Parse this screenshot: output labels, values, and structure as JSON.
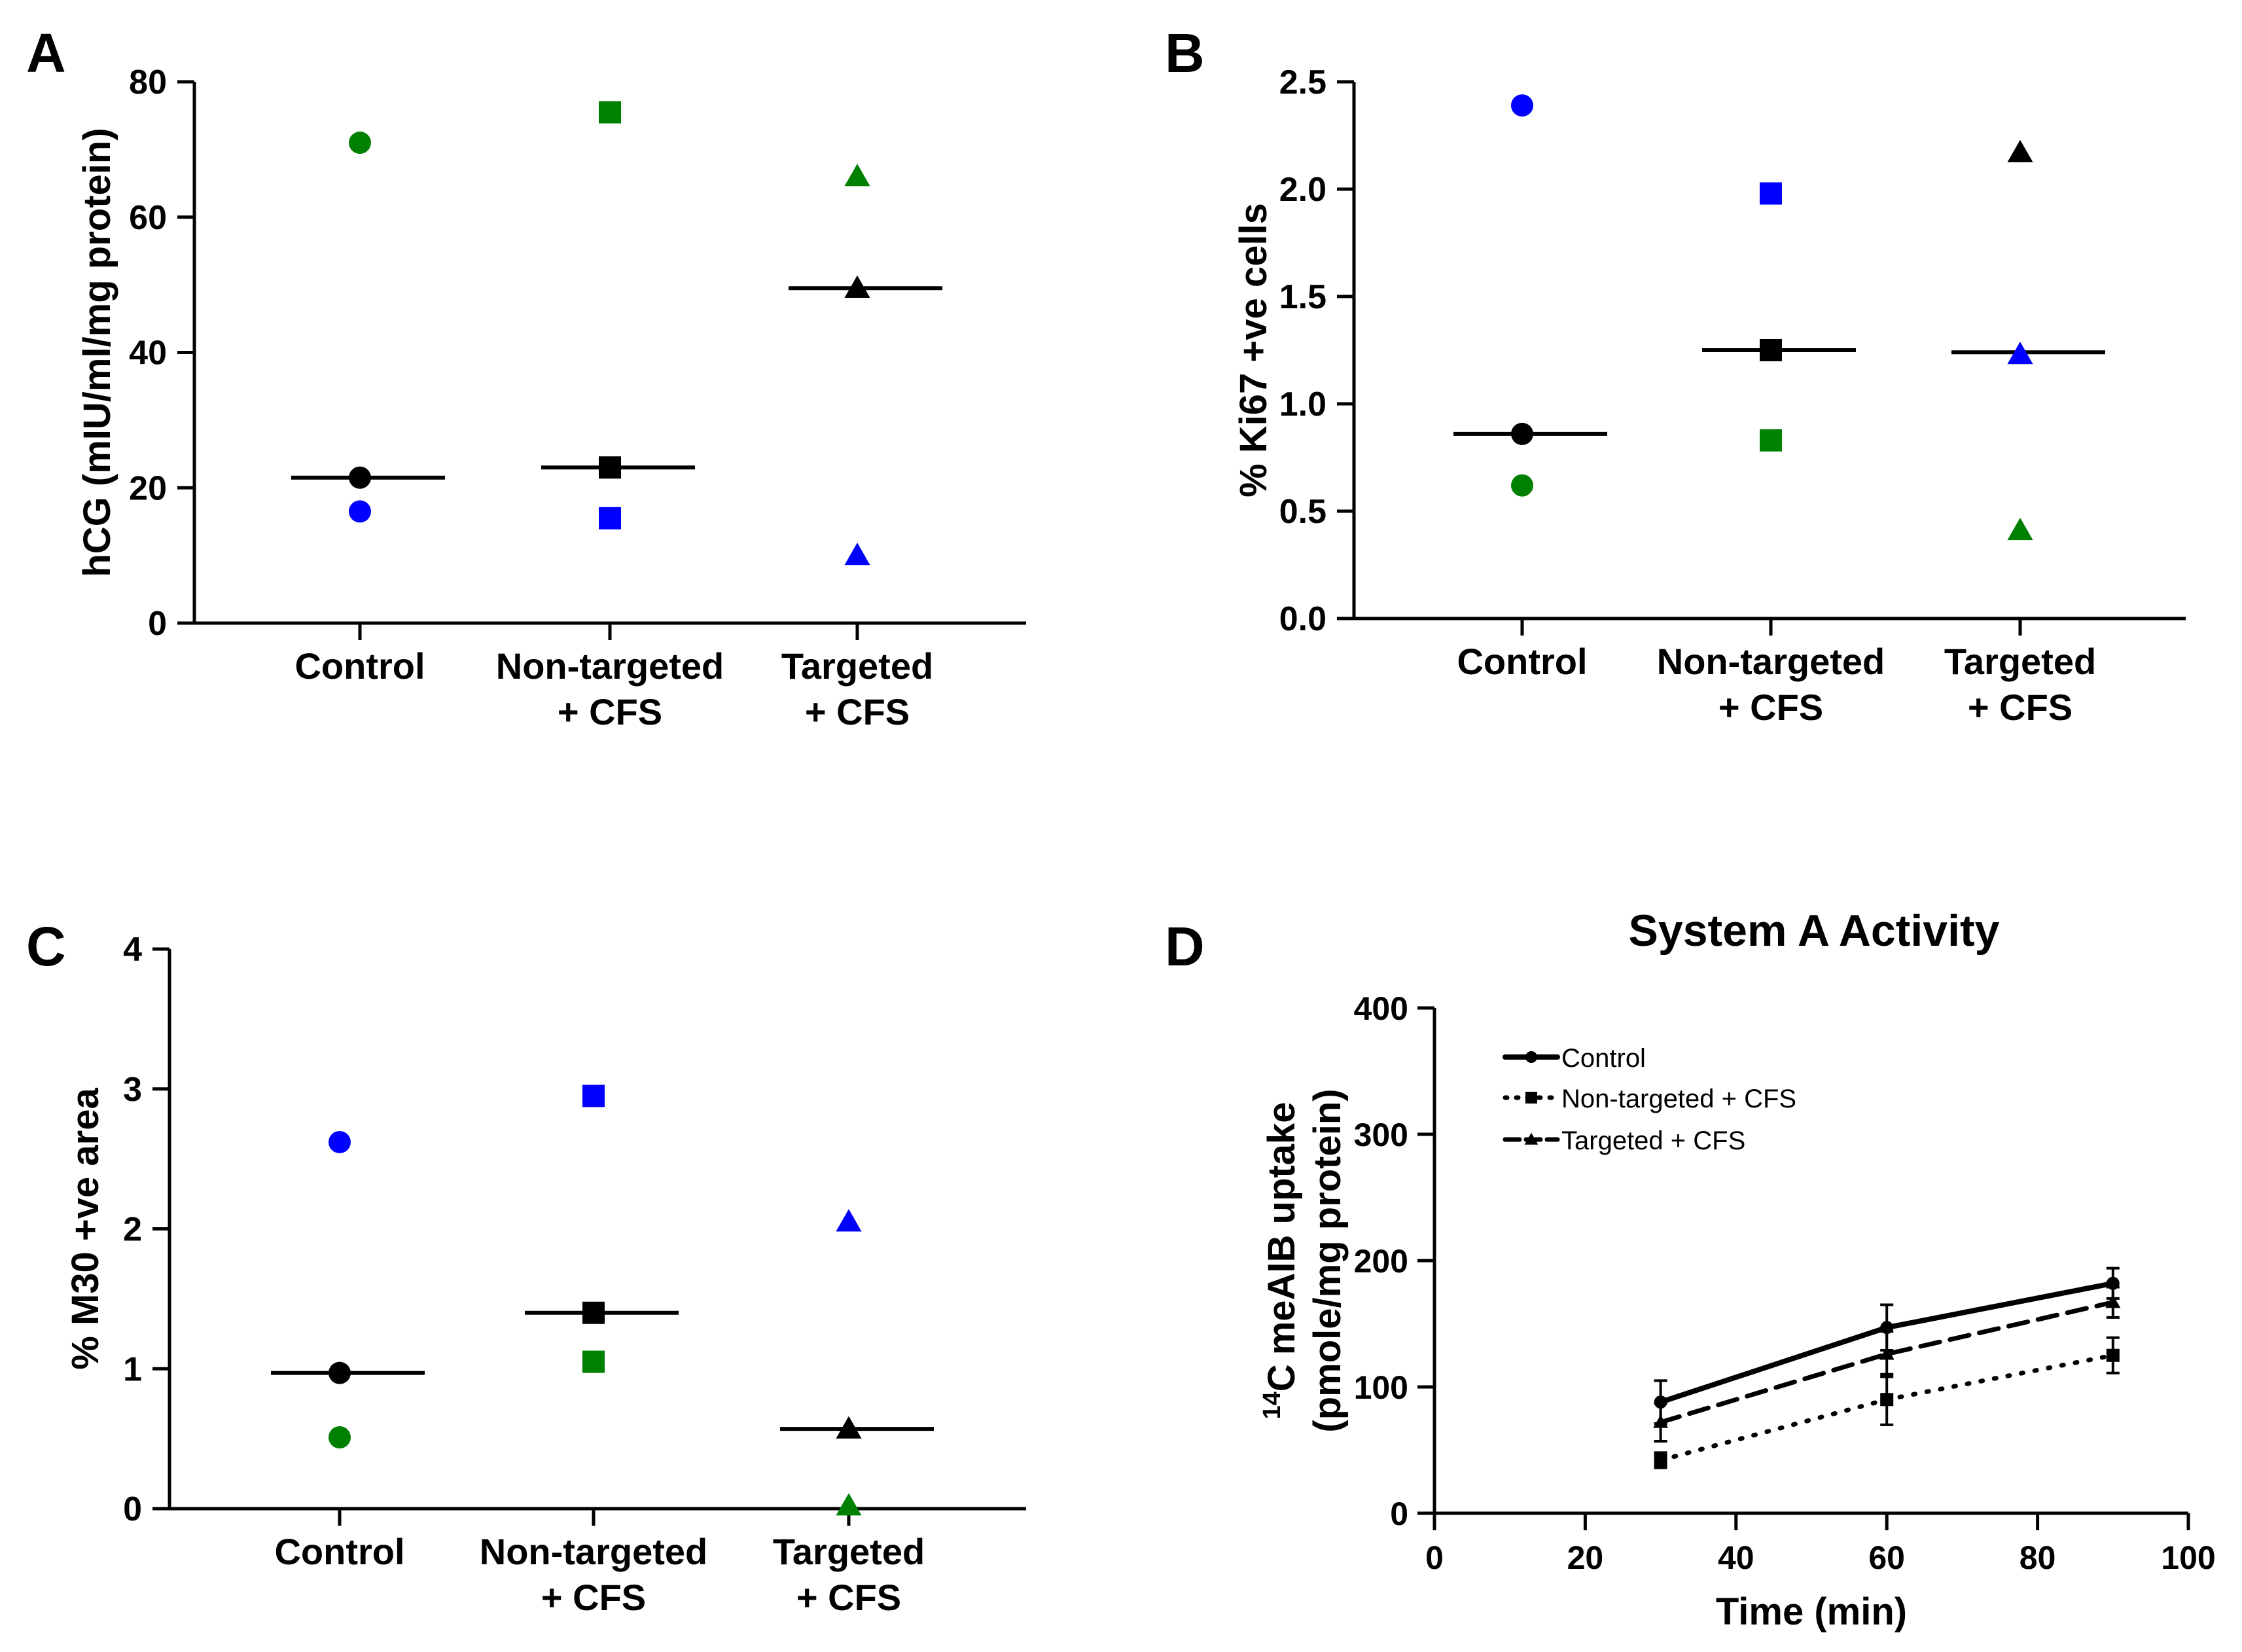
{
  "colors": {
    "black": "#000000",
    "blue": "#0000ff",
    "green": "#008000"
  },
  "chart_data": [
    {
      "panel": "A",
      "type": "scatter",
      "title": "",
      "xlabel": "",
      "ylabel": "hCG (mIU/ml/mg protein)",
      "ylim": [
        0,
        80
      ],
      "yticks": [
        "0",
        "20",
        "40",
        "60",
        "80"
      ],
      "categories": [
        {
          "line1": "Control",
          "line2": ""
        },
        {
          "line1": "Non-targeted",
          "line2": "+ CFS"
        },
        {
          "line1": "Targeted",
          "line2": "+ CFS"
        }
      ],
      "series": [
        {
          "name": "black",
          "color": "#000000",
          "values": [
            21.5,
            23,
            49.5
          ]
        },
        {
          "name": "blue",
          "color": "#0000ff",
          "values": [
            16.5,
            15.5,
            10
          ]
        },
        {
          "name": "green",
          "color": "#008000",
          "values": [
            71,
            75.5,
            66
          ]
        }
      ],
      "markers": [
        "circle",
        "square",
        "triangle"
      ],
      "medians": [
        21.5,
        23,
        49.5
      ]
    },
    {
      "panel": "B",
      "type": "scatter",
      "title": "",
      "xlabel": "",
      "ylabel": "% Ki67 +ve cells",
      "ylim": [
        0,
        2.5
      ],
      "yticks": [
        "0.0",
        "0.5",
        "1.0",
        "1.5",
        "2.0",
        "2.5"
      ],
      "categories": [
        {
          "line1": "Control",
          "line2": ""
        },
        {
          "line1": "Non-targeted",
          "line2": "+ CFS"
        },
        {
          "line1": "Targeted",
          "line2": "+ CFS"
        }
      ],
      "series": [
        {
          "name": "black",
          "color": "#000000",
          "values": [
            0.86,
            1.25,
            2.17
          ]
        },
        {
          "name": "blue",
          "color": "#0000ff",
          "values": [
            2.39,
            1.98,
            1.23
          ]
        },
        {
          "name": "green",
          "color": "#008000",
          "values": [
            0.62,
            0.83,
            0.41
          ]
        }
      ],
      "markers": [
        "circle",
        "square",
        "triangle"
      ],
      "medians": [
        0.86,
        1.25,
        1.24
      ]
    },
    {
      "panel": "C",
      "type": "scatter",
      "title": "",
      "xlabel": "",
      "ylabel": "% M30 +ve area",
      "ylim": [
        0,
        4
      ],
      "yticks": [
        "0",
        "1",
        "2",
        "3",
        "4"
      ],
      "categories": [
        {
          "line1": "Control",
          "line2": ""
        },
        {
          "line1": "Non-targeted",
          "line2": "+ CFS"
        },
        {
          "line1": "Targeted",
          "line2": "+ CFS"
        }
      ],
      "series": [
        {
          "name": "black",
          "color": "#000000",
          "values": [
            0.97,
            1.4,
            0.57
          ]
        },
        {
          "name": "blue",
          "color": "#0000ff",
          "values": [
            2.62,
            2.95,
            2.05
          ]
        },
        {
          "name": "green",
          "color": "#008000",
          "values": [
            0.51,
            1.05,
            0.02
          ]
        }
      ],
      "markers": [
        "circle",
        "square",
        "triangle"
      ],
      "medians": [
        0.97,
        1.4,
        0.57
      ]
    },
    {
      "panel": "D",
      "type": "line",
      "title": "System  A Activity",
      "xlabel": "Time (min)",
      "ylabel_line1": "meAIB uptake",
      "ylabel_iso": "14",
      "ylabel_element": "C",
      "ylabel_line2": "(pmole/mg protein)",
      "xlim": [
        0,
        100
      ],
      "ylim": [
        0,
        400
      ],
      "xticks": [
        "0",
        "20",
        "40",
        "60",
        "80",
        "100"
      ],
      "yticks": [
        "0",
        "100",
        "200",
        "300",
        "400"
      ],
      "x": [
        30,
        60,
        90
      ],
      "series": [
        {
          "name": "Control",
          "style": "solid",
          "marker": "circle",
          "values": [
            88,
            147,
            182
          ],
          "errors": [
            17,
            18,
            12
          ]
        },
        {
          "name": "Non-targeted +  CFS",
          "style": "dotted",
          "marker": "square",
          "values": [
            42,
            90,
            125
          ],
          "errors": [
            6,
            20,
            14
          ]
        },
        {
          "name": "Targeted + CFS",
          "style": "dashed",
          "marker": "triangle",
          "values": [
            72,
            126,
            167
          ],
          "errors": [
            15,
            18,
            12
          ]
        }
      ],
      "legend": "top-left"
    }
  ]
}
